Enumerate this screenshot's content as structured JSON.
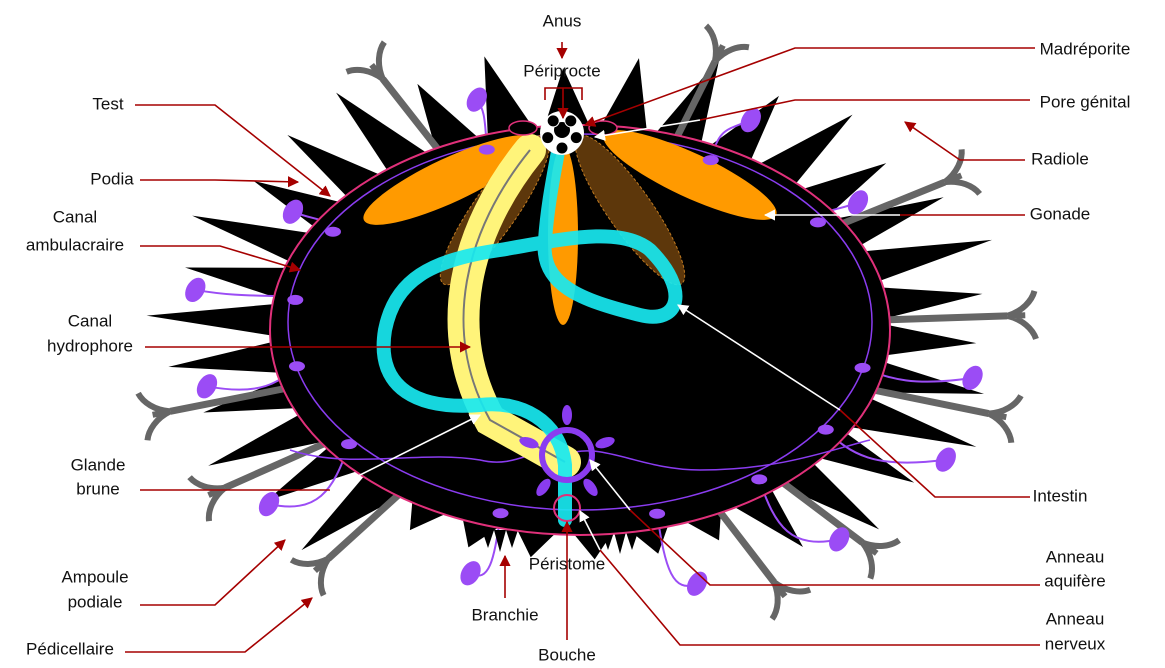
{
  "labels": [
    {
      "lines": [
        "Anus"
      ]
    },
    {
      "lines": [
        "Périprocte"
      ]
    },
    {
      "lines": [
        "Madréporite"
      ]
    },
    {
      "lines": [
        "Pore génital"
      ]
    },
    {
      "lines": [
        "Radiole"
      ]
    },
    {
      "lines": [
        "Gonade"
      ]
    },
    {
      "lines": [
        "Intestin"
      ]
    },
    {
      "lines": [
        "Anneau",
        "aquifère"
      ]
    },
    {
      "lines": [
        "Anneau",
        "nerveux"
      ]
    },
    {
      "lines": [
        "Bouche"
      ]
    },
    {
      "lines": [
        "Branchie"
      ]
    },
    {
      "lines": [
        "Péristome"
      ]
    },
    {
      "lines": [
        "Pédicellaire"
      ]
    },
    {
      "lines": [
        "Ampoule",
        "podiale"
      ]
    },
    {
      "lines": [
        "Glande",
        "brune"
      ]
    },
    {
      "lines": [
        "Canal",
        "hydrophore"
      ]
    },
    {
      "lines": [
        "Canal",
        "ambulacraire"
      ]
    },
    {
      "lines": [
        "Podia"
      ]
    },
    {
      "lines": [
        "Test"
      ]
    }
  ]
}
